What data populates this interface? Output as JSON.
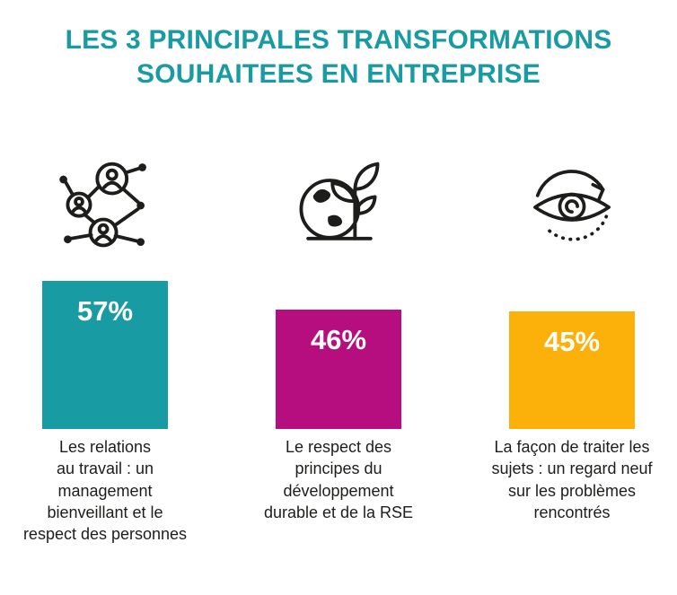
{
  "title": {
    "line1": "LES 3 PRINCIPALES TRANSFORMATIONS",
    "line2": "SOUHAITEES EN ENTREPRISE",
    "color": "#189ba2"
  },
  "colors": {
    "teal": "#189ba2",
    "magenta": "#b60d7f",
    "orange": "#fbb10a",
    "icon_stroke": "#1d1d1b",
    "caption_text": "#1d1d1b",
    "value_label": "#ffffff"
  },
  "chart_data": {
    "type": "bar",
    "title": "LES 3 PRINCIPALES TRANSFORMATIONS SOUHAITEES EN ENTREPRISE",
    "categories": [
      "Les relations au travail : un management bienveillant et le respect des personnes",
      "Le respect des principes du développement durable et de la RSE",
      "La façon de traiter les sujets : un regard neuf sur les problèmes rencontrés"
    ],
    "values": [
      57,
      46,
      45
    ],
    "unit": "%",
    "value_labels": [
      "57%",
      "46%",
      "45%"
    ],
    "bar_colors": [
      "#189ba2",
      "#b60d7f",
      "#fbb10a"
    ],
    "icons": [
      "people-network-icon",
      "globe-plant-icon",
      "eye-cycle-icon"
    ],
    "ylim": [
      0,
      60
    ],
    "grid": false,
    "legend": "none"
  },
  "bars": [
    {
      "value": 57,
      "label": "57%",
      "color": "#189ba2",
      "icon": "people-network-icon",
      "caption": "Les relations\nau travail : un\nmanagement\nbienveillant et le\nrespect des personnes"
    },
    {
      "value": 46,
      "label": "46%",
      "color": "#b60d7f",
      "icon": "globe-plant-icon",
      "caption": "Le respect des\nprincipes du\ndéveloppement\ndurable et de la RSE"
    },
    {
      "value": 45,
      "label": "45%",
      "color": "#fbb10a",
      "icon": "eye-cycle-icon",
      "caption": "La façon de traiter les\nsujets : un regard neuf\nsur les problèmes\nrencontrés"
    }
  ]
}
